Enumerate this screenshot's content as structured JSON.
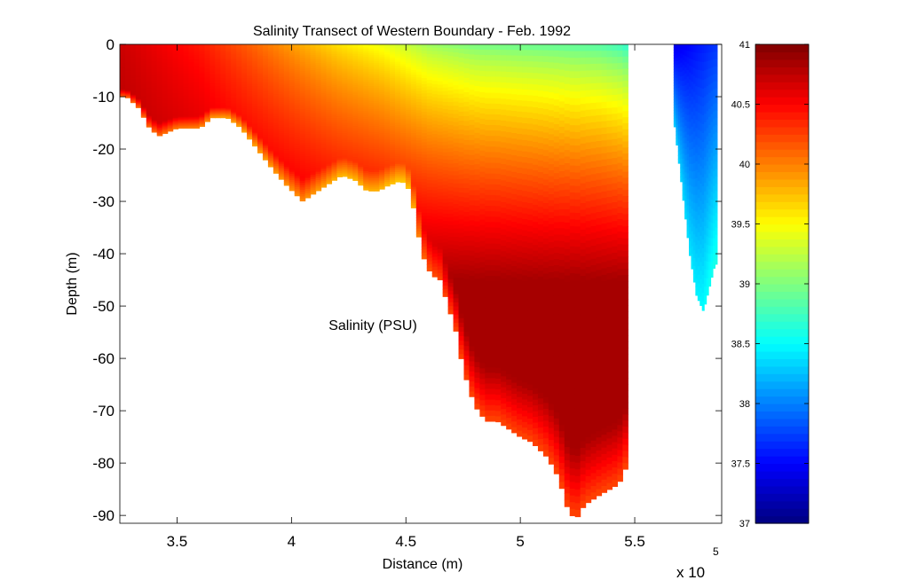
{
  "chart_data": {
    "type": "heatmap",
    "title": "Salinity Transect of Western Boundary - Feb. 1992",
    "xlabel": "Distance (m)",
    "ylabel": "Depth (m)",
    "annotation": "Salinity (PSU)",
    "x_exponent_base": "x 10",
    "x_exponent_power": "5",
    "xlim": [
      3.25,
      5.88
    ],
    "ylim": [
      -91.5,
      0
    ],
    "x_ticks": [
      3.5,
      4,
      4.5,
      5,
      5.5
    ],
    "x_tick_labels": [
      "3.5",
      "4",
      "4.5",
      "5",
      "5.5"
    ],
    "y_ticks": [
      0,
      -10,
      -20,
      -30,
      -40,
      -50,
      -60,
      -70,
      -80,
      -90
    ],
    "y_tick_labels": [
      "0",
      "-10",
      "-20",
      "-30",
      "-40",
      "-50",
      "-60",
      "-70",
      "-80",
      "-90"
    ],
    "colorbar": {
      "min": 37,
      "max": 41,
      "colormap": "jet",
      "ticks": [
        37,
        37.5,
        38,
        38.5,
        39,
        39.5,
        40,
        40.5,
        41
      ],
      "tick_labels": [
        "37",
        "37.5",
        "38",
        "38.5",
        "39",
        "39.5",
        "40",
        "40.5",
        "41"
      ]
    },
    "bottom_profile": {
      "x": [
        3.25,
        3.28,
        3.33,
        3.38,
        3.42,
        3.5,
        3.6,
        3.65,
        3.72,
        3.78,
        3.85,
        3.92,
        3.98,
        4.05,
        4.08,
        4.15,
        4.22,
        4.28,
        4.33,
        4.38,
        4.42,
        4.48,
        4.52,
        4.57,
        4.61,
        4.65,
        4.72,
        4.75,
        4.8,
        4.85,
        4.9,
        5.0,
        5.05,
        5.12,
        5.17,
        5.2,
        5.24,
        5.28,
        5.35,
        5.39,
        5.43,
        5.47
      ],
      "depth": [
        -10,
        -10,
        -12,
        -16,
        -17.5,
        -16,
        -16,
        -14,
        -14,
        -16,
        -20,
        -24,
        -27,
        -30,
        -29,
        -27,
        -25,
        -26,
        -28,
        -28,
        -27,
        -26,
        -28,
        -40,
        -44,
        -45,
        -55,
        -62,
        -69,
        -72,
        -72,
        -75,
        -76,
        -79,
        -83,
        -88,
        -91,
        -88,
        -86,
        -85,
        -84,
        -80
      ]
    },
    "boundary_depth": -45,
    "east_patch": {
      "x_range": [
        5.67,
        5.86
      ],
      "bottom": [
        -14,
        -25,
        -40,
        -48,
        -51,
        -42
      ],
      "bottom_x": [
        5.67,
        5.7,
        5.74,
        5.77,
        5.8,
        5.85
      ],
      "salinity": [
        37.4,
        37.8,
        38.2,
        38.6
      ]
    },
    "surface_salinity": [
      [
        3.25,
        40.7
      ],
      [
        3.6,
        40.4
      ],
      [
        3.9,
        40.0
      ],
      [
        4.2,
        39.6
      ],
      [
        4.4,
        39.4
      ],
      [
        4.6,
        39.1
      ],
      [
        4.8,
        38.95
      ],
      [
        5.0,
        38.9
      ],
      [
        5.2,
        38.85
      ],
      [
        5.35,
        38.8
      ],
      [
        5.45,
        38.7
      ],
      [
        5.52,
        38.4
      ]
    ]
  }
}
